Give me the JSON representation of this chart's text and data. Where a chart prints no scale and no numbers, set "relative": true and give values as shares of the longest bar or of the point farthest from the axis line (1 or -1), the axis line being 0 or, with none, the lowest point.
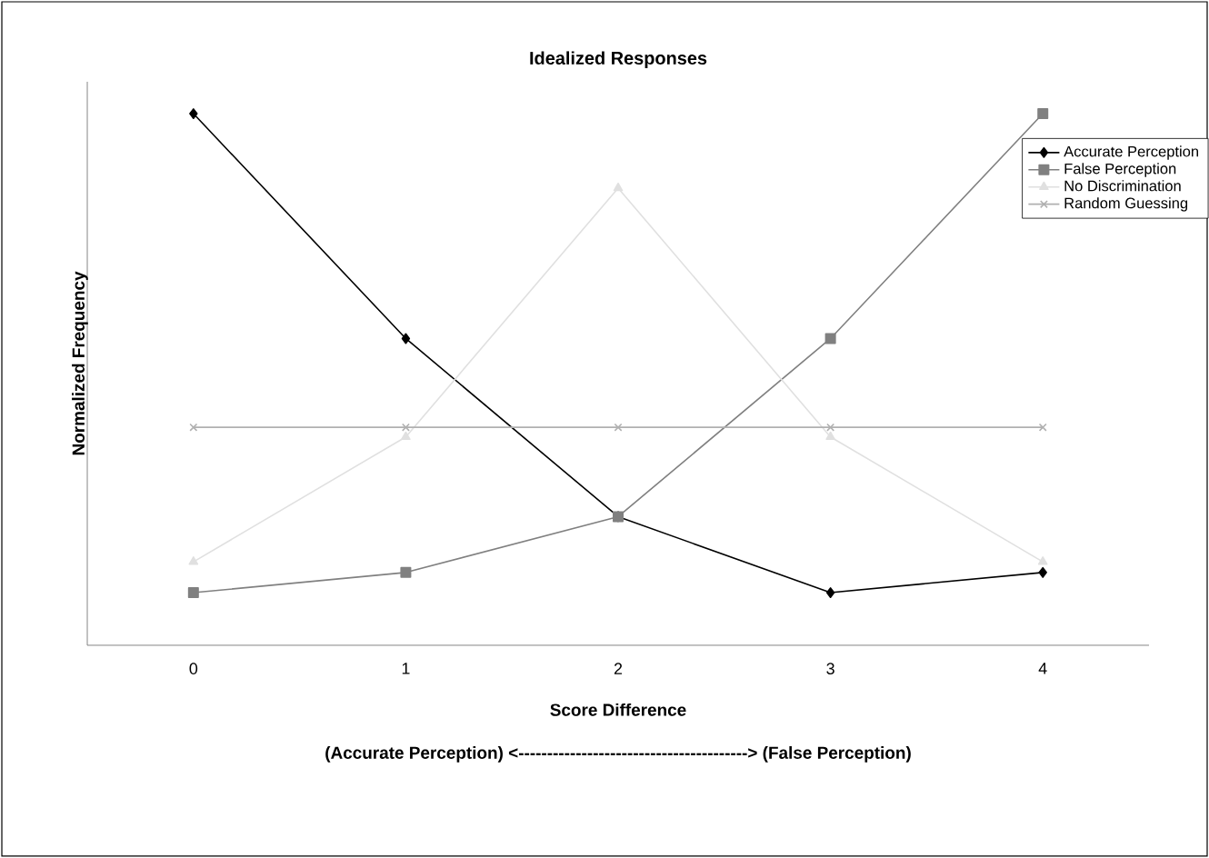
{
  "chart_data": {
    "type": "line",
    "title": "Idealized Responses",
    "xlabel": "Score Difference",
    "ylabel": "Normalized Frequency",
    "annotations": [
      "(Accurate Perception) <----------------------------------------> (False Perception)"
    ],
    "categories": [
      "0",
      "1",
      "2",
      "3",
      "4"
    ],
    "relative": true,
    "legend": "top right",
    "grid": false,
    "line_style": "solid",
    "series": [
      {
        "name": "Accurate Perception",
        "color": "#000000",
        "marker": "diamond",
        "values": [
          1,
          0.577,
          0.242,
          0.099,
          0.137
        ]
      },
      {
        "name": "False Perception",
        "color": "#808080",
        "marker": "square",
        "values": [
          0.099,
          0.137,
          0.242,
          0.577,
          1
        ]
      },
      {
        "name": "No Discrimination",
        "color": "#e0e0e0",
        "marker": "triangle",
        "values": [
          0.157,
          0.392,
          0.86,
          0.392,
          0.157
        ]
      },
      {
        "name": "Random Guessing",
        "color": "#b0b0b0",
        "marker": "cross",
        "values": [
          0.41,
          0.41,
          0.41,
          0.41,
          0.41
        ]
      }
    ]
  }
}
